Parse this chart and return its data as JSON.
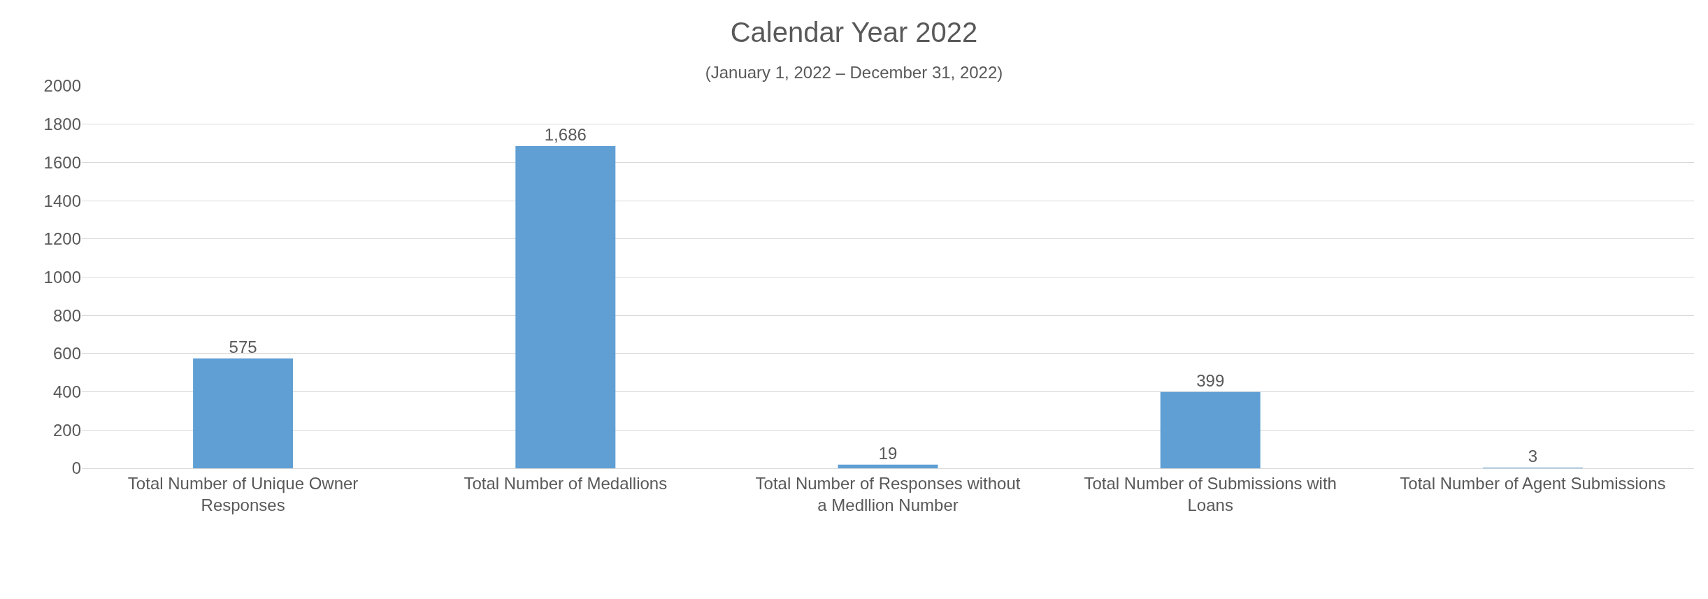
{
  "chart_data": {
    "type": "bar",
    "title": "Calendar Year 2022",
    "subtitle": "(January 1, 2022 – December 31, 2022)",
    "categories": [
      "Total Number of Unique Owner Responses",
      "Total Number of Medallions",
      "Total Number of Responses without a Medllion Number",
      "Total Number of Submissions with Loans",
      "Total Number of Agent Submissions"
    ],
    "values": [
      575,
      1686,
      19,
      399,
      3
    ],
    "value_labels": [
      "575",
      "1,686",
      "19",
      "399",
      "3"
    ],
    "color": "#5f9fd4",
    "ylim": [
      0,
      2000
    ],
    "yticks": [
      0,
      200,
      400,
      600,
      800,
      1000,
      1200,
      1400,
      1600,
      1800,
      2000
    ],
    "grid": "y"
  }
}
